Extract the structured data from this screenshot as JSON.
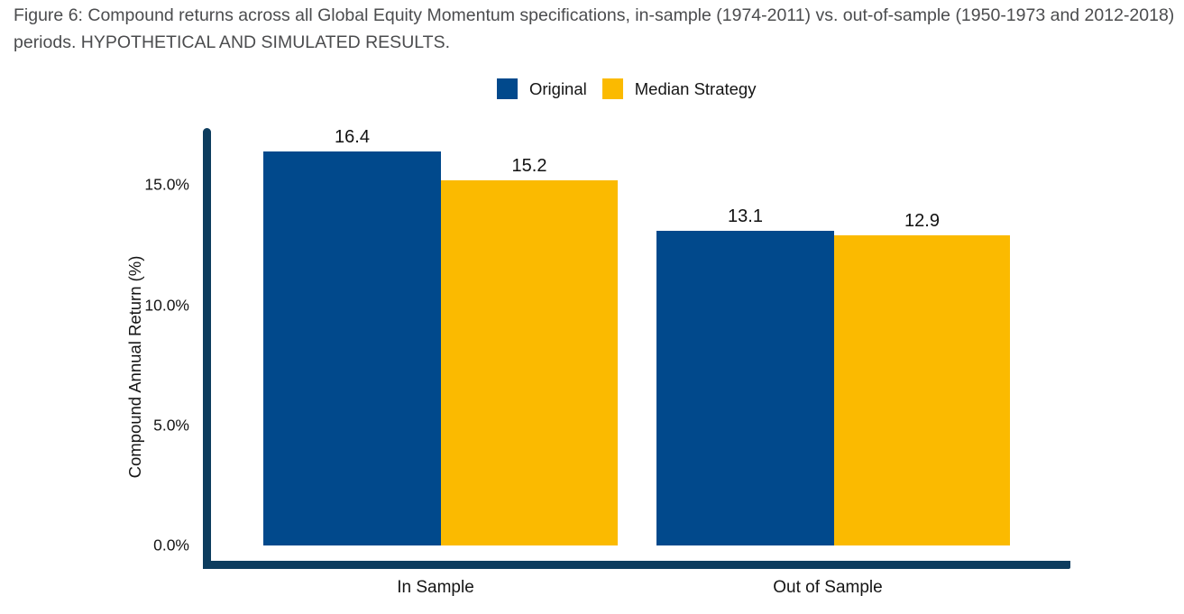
{
  "figure": {
    "caption": "Figure 6: Compound returns across all Global Equity Momentum specifications, in-sample (1974-2011) vs. out-of-sample (1950-1973 and 2012-2018) periods. HYPOTHETICAL AND SIMULATED RESULTS."
  },
  "legend": [
    {
      "label": "Original",
      "color": "#01498C"
    },
    {
      "label": "Median Strategy",
      "color": "#FBBA00"
    }
  ],
  "chart_data": {
    "type": "bar",
    "title": "Compound returns across all Global Equity Momentum specifications, in-sample vs. out-of-sample periods",
    "categories": [
      "In Sample",
      "Out of Sample"
    ],
    "series": [
      {
        "name": "Original",
        "color": "#01498C",
        "values": [
          16.4,
          13.1
        ]
      },
      {
        "name": "Median Strategy",
        "color": "#FBBA00",
        "values": [
          15.2,
          12.9
        ]
      }
    ],
    "xlabel": "",
    "ylabel": "Compound Annual Return (%)",
    "yticks": [
      "0.0%",
      "5.0%",
      "10.0%",
      "15.0%"
    ],
    "ylim": [
      0,
      17.4
    ],
    "grid": false,
    "legend_position": "top",
    "bar_value_labels_shown": true
  },
  "colors": {
    "axis_line": "#0D3C5E",
    "caption_text": "#4B4C4E",
    "label_text": "#151515",
    "background": "#FFFFFF"
  }
}
